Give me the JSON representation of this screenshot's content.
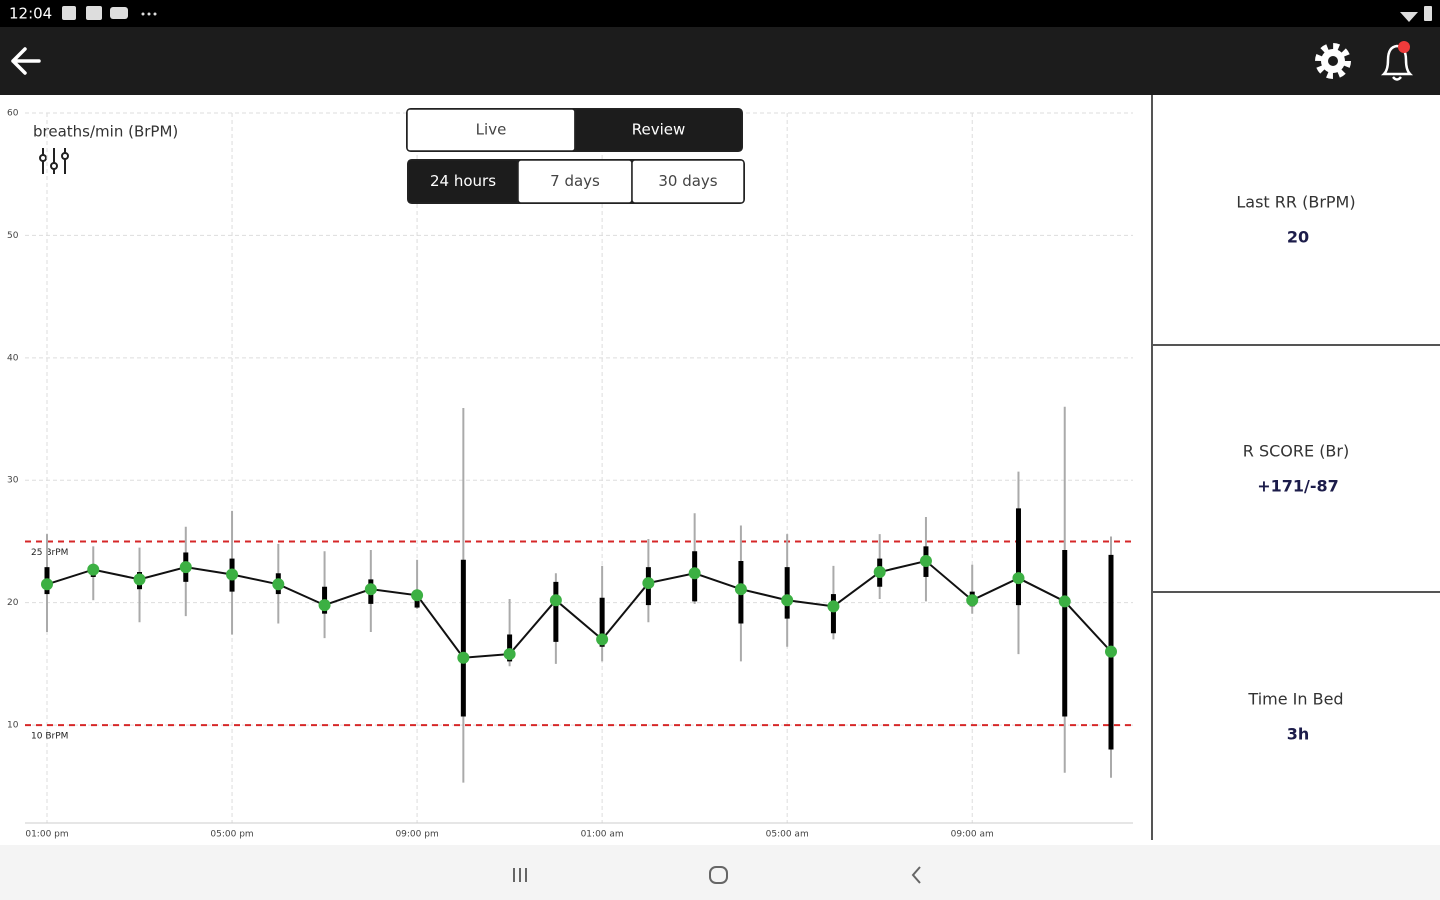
{
  "status_bar": {
    "time": "12:04"
  },
  "chart_data": {
    "type": "box",
    "y_label": "breaths/min (BrPM)",
    "categories": [
      "01:00 pm",
      null,
      null,
      null,
      "05:00 pm",
      null,
      null,
      null,
      "09:00 pm",
      null,
      null,
      null,
      "01:00 am",
      null,
      null,
      null,
      "05:00 am",
      null,
      null,
      null,
      "09:00 am",
      null,
      null,
      null
    ],
    "values": [
      21.5,
      22.7,
      21.9,
      22.9,
      22.3,
      21.5,
      19.8,
      21.1,
      20.6,
      15.5,
      15.8,
      20.2,
      17.0,
      21.6,
      22.4,
      21.1,
      20.2,
      19.7,
      22.5,
      23.4,
      20.2,
      22.0,
      20.1,
      16.0
    ],
    "q1": [
      20.7,
      22.1,
      21.1,
      21.7,
      20.9,
      20.7,
      19.1,
      19.9,
      19.6,
      10.7,
      15.2,
      16.8,
      16.4,
      19.8,
      20.1,
      18.3,
      18.7,
      17.5,
      21.3,
      22.1,
      19.7,
      19.8,
      10.7,
      8.0
    ],
    "q3": [
      22.9,
      23.1,
      22.5,
      24.1,
      23.6,
      22.4,
      21.3,
      21.9,
      20.9,
      23.5,
      17.4,
      21.7,
      20.4,
      22.9,
      24.2,
      23.4,
      22.9,
      20.7,
      23.6,
      24.6,
      20.9,
      27.7,
      24.3,
      23.9
    ],
    "low": [
      17.6,
      20.2,
      18.4,
      18.9,
      17.4,
      18.3,
      17.1,
      17.6,
      19.5,
      5.3,
      14.8,
      15.0,
      15.2,
      18.4,
      19.9,
      15.2,
      16.4,
      17.0,
      20.3,
      20.1,
      19.1,
      15.8,
      6.1,
      5.7
    ],
    "high": [
      25.6,
      24.6,
      24.5,
      26.2,
      27.5,
      24.8,
      24.2,
      24.3,
      23.5,
      35.9,
      20.3,
      22.4,
      23.0,
      25.2,
      27.3,
      26.3,
      25.6,
      23.0,
      25.6,
      27.0,
      23.1,
      30.7,
      36.0,
      25.4
    ],
    "color": "#3cb043",
    "ylim": [
      2,
      60
    ],
    "yticks": [
      10,
      20,
      30,
      40,
      50,
      60
    ],
    "grid": true,
    "reference_lines": [
      {
        "value": 25,
        "label": "25 BrPM"
      },
      {
        "value": 10,
        "label": "10 BrPM"
      }
    ],
    "reference_color": "#d62728"
  },
  "toggles": {
    "mode": {
      "options": [
        "Live",
        "Review"
      ],
      "selected": 1
    },
    "range": {
      "options": [
        "24 hours",
        "7 days",
        "30 days"
      ],
      "selected": 0
    }
  },
  "stats": [
    {
      "label": "Last RR (BrPM)",
      "value": "20"
    },
    {
      "label": "R SCORE (Br)",
      "value": "+171/-87"
    },
    {
      "label": "Time In Bed",
      "value": "3h"
    }
  ]
}
